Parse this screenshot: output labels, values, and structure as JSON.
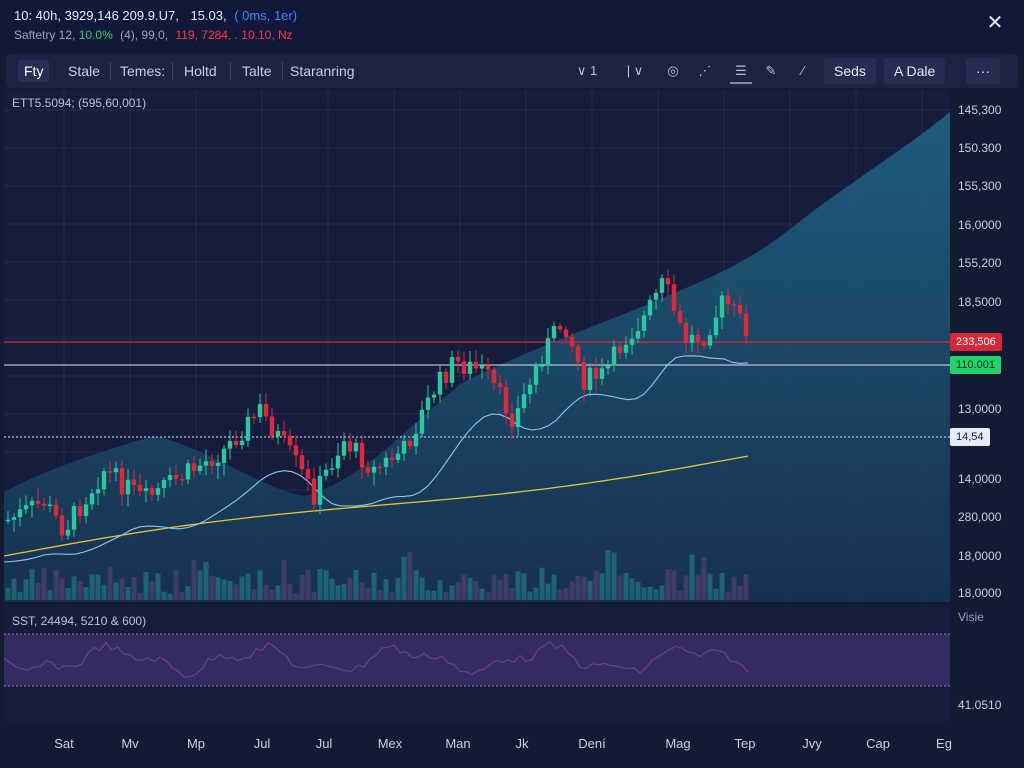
{
  "header": {
    "line1_prefix": "10: 40h, 3929,146 209.9.U7,",
    "line1_value": "15.03,",
    "line1_accent": "( 0ms, 1er)",
    "line2_label": "Saftetry 12,",
    "line2_green": "10.0%",
    "line2_mid": "(4), 99,0,",
    "line2_red": "119, 7284, . 10.10, Nz",
    "close_icon": "close-icon"
  },
  "toolbar": {
    "tabs": [
      "Fty",
      "Stale",
      "Temes:",
      "Holtd",
      "Talte",
      "Staranring"
    ],
    "active_tab": 0,
    "icons": [
      {
        "name": "interval-dropdown",
        "label": "∨ 1"
      },
      {
        "name": "indicator-dropdown",
        "label": "| ∨"
      },
      {
        "name": "camera-icon",
        "label": "◎"
      },
      {
        "name": "chart-type-icon",
        "label": "⋰"
      },
      {
        "name": "list-icon",
        "label": "☰"
      },
      {
        "name": "draw-icon",
        "label": "✎"
      },
      {
        "name": "line-tool-icon",
        "label": "∕"
      }
    ],
    "btn_seds": "Seds",
    "btn_date": "A  Dale",
    "btn_more": "···"
  },
  "main_chart": {
    "label": "ETT5.5094; (595,60,001)",
    "price_ticks": [
      "145,300",
      "150.300",
      "155,300",
      "16,0000",
      "155,200",
      "18,5000",
      "13,0000",
      "14,0000",
      "280,000",
      "18,0000",
      "18,0000"
    ],
    "tag_red": "233,506",
    "tag_green": "110.001",
    "tag_white": "14,54",
    "colors": {
      "up": "#26c9a0",
      "down": "#e0283c",
      "ma_fast": "#8fc7ee",
      "ma_slow": "#e3c43a",
      "area": "#1e5a7a",
      "bg": "#161d3c"
    }
  },
  "oscillator": {
    "label": "SST, 24494, 5210 & 600)",
    "axis_label": "Visie",
    "axis_value": "41.0510",
    "colors": {
      "line": "#6a3a9a",
      "band": "#3a2f66"
    }
  },
  "time_axis": {
    "labels": [
      "Sat",
      "Mv",
      "Mp",
      "Jul",
      "Jul",
      "Mex",
      "Man",
      "Jk",
      "Dení",
      "Mag",
      "Tep",
      "Jvy",
      "Cap",
      "Eg"
    ]
  }
}
